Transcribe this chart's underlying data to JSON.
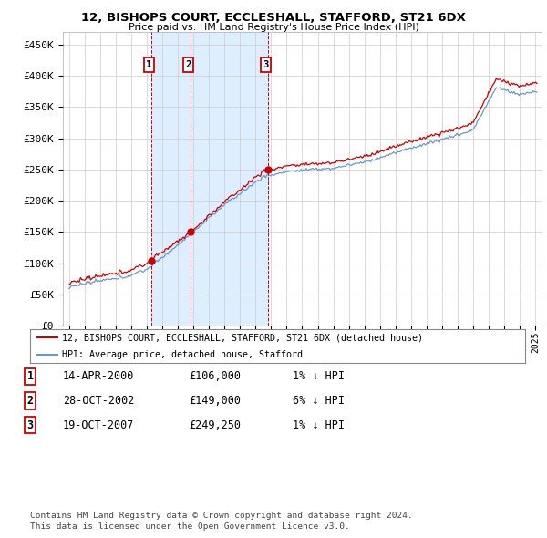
{
  "title": "12, BISHOPS COURT, ECCLESHALL, STAFFORD, ST21 6DX",
  "subtitle": "Price paid vs. HM Land Registry's House Price Index (HPI)",
  "ylabel_ticks": [
    "£0",
    "£50K",
    "£100K",
    "£150K",
    "£200K",
    "£250K",
    "£300K",
    "£350K",
    "£400K",
    "£450K"
  ],
  "ytick_vals": [
    0,
    50000,
    100000,
    150000,
    200000,
    250000,
    300000,
    350000,
    400000,
    450000
  ],
  "ylim": [
    0,
    470000
  ],
  "sale_dates_num": [
    2000.29,
    2002.83,
    2007.8
  ],
  "sale_prices": [
    106000,
    149000,
    249250
  ],
  "sale_labels": [
    "1",
    "2",
    "3"
  ],
  "legend_line1": "12, BISHOPS COURT, ECCLESHALL, STAFFORD, ST21 6DX (detached house)",
  "legend_line2": "HPI: Average price, detached house, Stafford",
  "table_rows": [
    [
      "1",
      "14-APR-2000",
      "£106,000",
      "1% ↓ HPI"
    ],
    [
      "2",
      "28-OCT-2002",
      "£149,000",
      "6% ↓ HPI"
    ],
    [
      "3",
      "19-OCT-2007",
      "£249,250",
      "1% ↓ HPI"
    ]
  ],
  "footnote1": "Contains HM Land Registry data © Crown copyright and database right 2024.",
  "footnote2": "This data is licensed under the Open Government Licence v3.0.",
  "hpi_color": "#6699cc",
  "sold_color": "#cc0000",
  "vline_color": "#cc0000",
  "band_color": "#ddeeff",
  "background_color": "#ffffff",
  "grid_color": "#cccccc",
  "dot_color": "#cc0000"
}
